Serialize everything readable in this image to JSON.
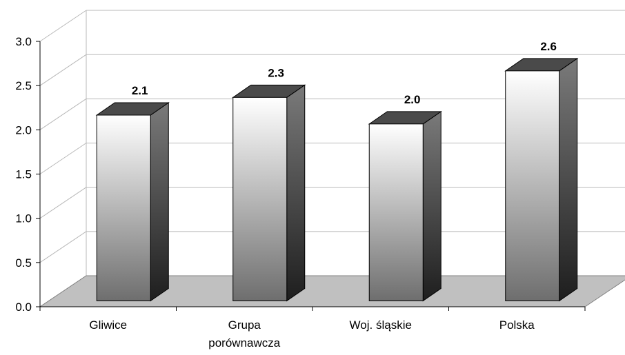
{
  "chart_data": {
    "type": "bar",
    "categories": [
      "Gliwice",
      "Grupa porównawcza",
      "Woj. śląskie",
      "Polska"
    ],
    "values": [
      2.1,
      2.3,
      2.0,
      2.6
    ],
    "value_labels": [
      "2.1",
      "2.3",
      "2.0",
      "2.6"
    ],
    "y_ticks": [
      "0.0",
      "0.5",
      "1.0",
      "1.5",
      "2.0",
      "2.5",
      "3.0"
    ],
    "ylim": [
      0,
      3
    ],
    "grid": true,
    "three_d": true,
    "legend": "none",
    "title": "",
    "xlabel": "",
    "ylabel": "",
    "colors": {
      "bar_light": "#ffffff",
      "bar_dark": "#6e6e6e",
      "bar_side": "#3a3a3a",
      "bar_top": "#4a4a4a",
      "floor": "#c0c0c0",
      "grid": "#b8b8b8",
      "text": "#000000"
    }
  }
}
